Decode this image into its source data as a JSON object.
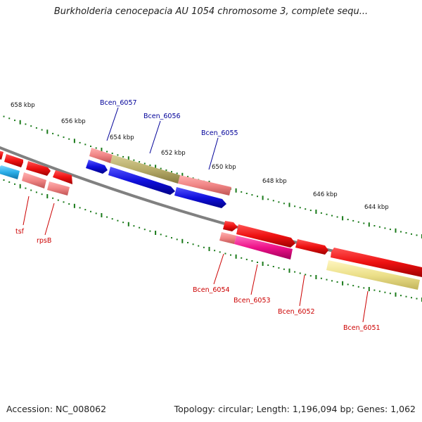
{
  "title": "Burkholderia cenocepacia AU 1054 chromosome 3, complete sequ...",
  "footer": {
    "accession": "Accession: NC_008062",
    "summary": "Topology: circular; Length: 1,196,094 bp; Genes: 1,062"
  },
  "kbp_labels": [
    "658 kbp",
    "656 kbp",
    "654 kbp",
    "652 kbp",
    "650 kbp",
    "648 kbp",
    "646 kbp",
    "644 kbp"
  ],
  "gene_labels": {
    "top": [
      "Bcen_6057",
      "Bcen_6056",
      "Bcen_6055"
    ],
    "bottom": [
      "tsf",
      "rpsB",
      "Bcen_6054",
      "Bcen_6053",
      "Bcen_6052",
      "Bcen_6051"
    ]
  },
  "colors": {
    "backbone": "#808080",
    "ticks": "#1a7a1a",
    "top_label": "#000099",
    "bottom_label": "#cc0000",
    "red_feature": "#ee1111",
    "pink_feature": "#f08585",
    "blue_feature": "#1010dd",
    "cyan_feature": "#2aaee8",
    "olive_feature": "#b8ad6a",
    "magenta_feature": "#ee1188",
    "yellow_feature": "#ece08a"
  }
}
